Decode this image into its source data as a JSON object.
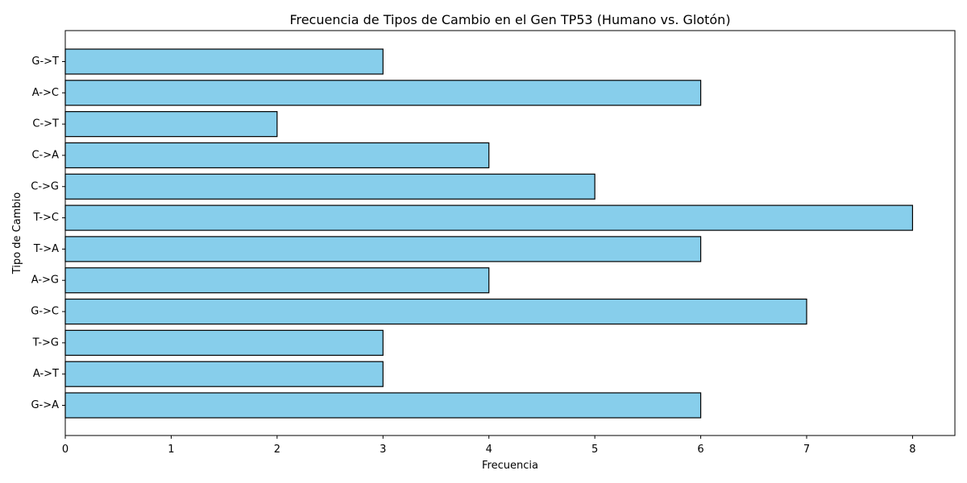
{
  "chart_data": {
    "type": "bar",
    "orientation": "horizontal",
    "title": "Frecuencia de Tipos de Cambio en el Gen TP53 (Humano vs. Glotón)",
    "xlabel": "Frecuencia",
    "ylabel": "Tipo de Cambio",
    "categories": [
      "G->A",
      "A->T",
      "T->G",
      "G->C",
      "A->G",
      "T->A",
      "T->C",
      "C->G",
      "C->A",
      "C->T",
      "A->C",
      "G->T"
    ],
    "values": [
      6,
      3,
      3,
      7,
      4,
      6,
      8,
      5,
      4,
      2,
      6,
      3
    ],
    "xlim": [
      0,
      8.4
    ],
    "xticks": [
      "0",
      "1",
      "2",
      "3",
      "4",
      "5",
      "6",
      "7",
      "8"
    ],
    "grid": false,
    "colors": {
      "bar_fill": "#87CEEB",
      "bar_edge": "#000000"
    }
  }
}
